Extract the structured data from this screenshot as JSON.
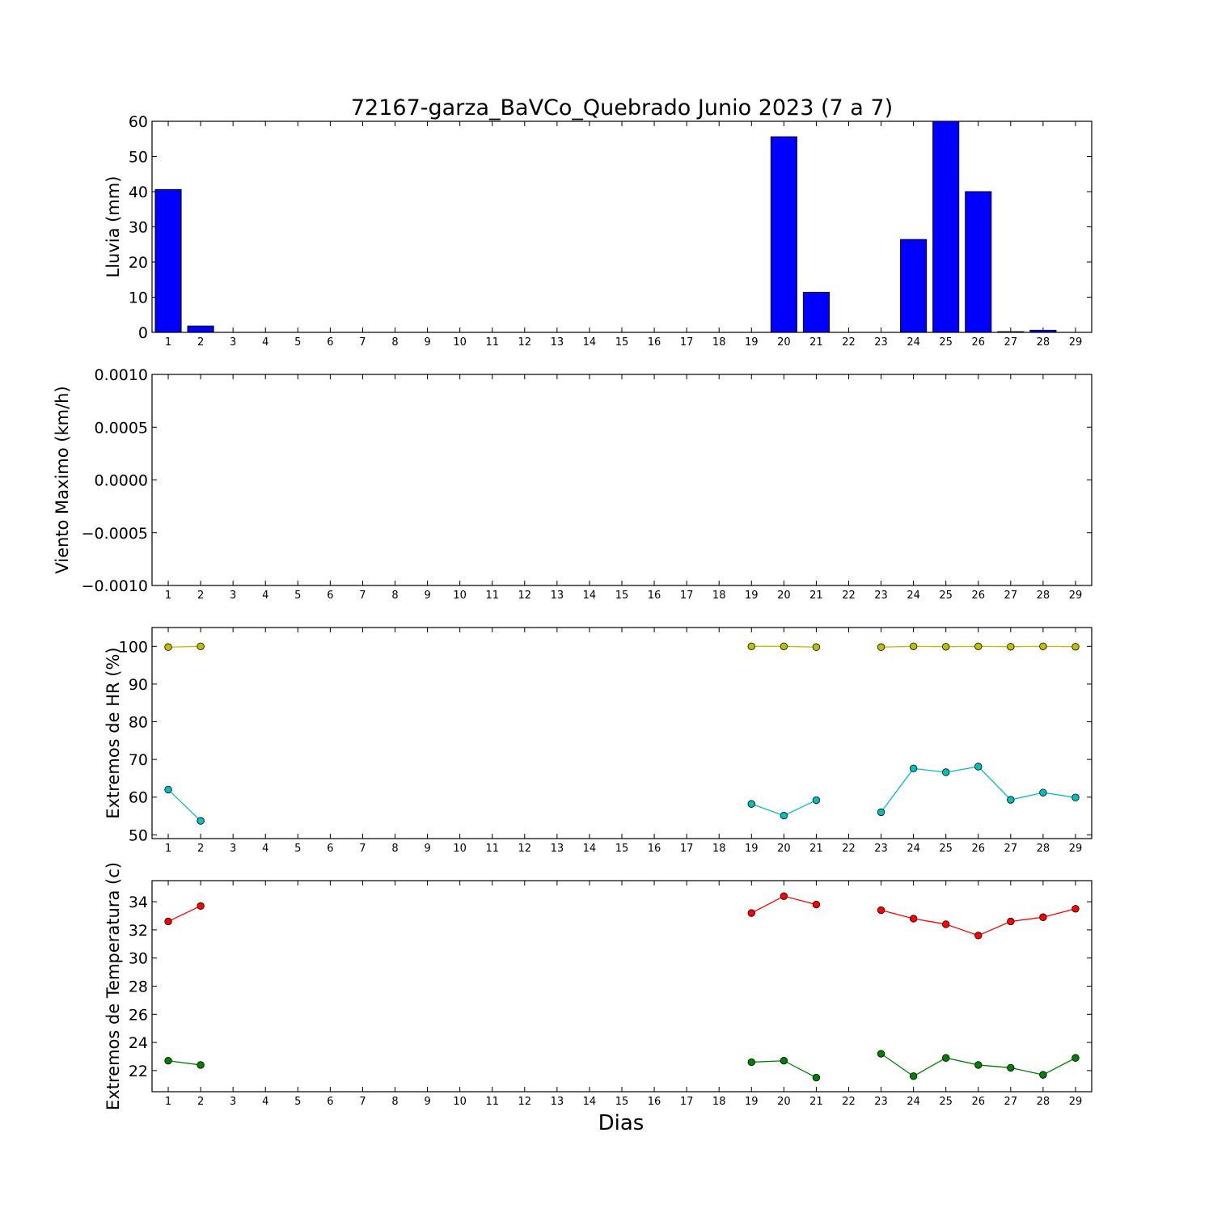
{
  "figure": {
    "title": "72167-garza_BaVCo_Quebrado Junio 2023  (7 a 7)",
    "xlabel": "Dias"
  },
  "colors": {
    "rain": "#0000ff",
    "hr_max": "#bfbf00",
    "hr_min": "#00bfbf",
    "temp_max": "#ff0000",
    "temp_min": "#008000"
  },
  "chart_data": [
    {
      "type": "bar",
      "ylabel": "Lluvia (mm)",
      "ylim": [
        0,
        60
      ],
      "yticks": [
        0,
        10,
        20,
        30,
        40,
        50,
        60
      ],
      "ytick_labels": [
        "0",
        "10",
        "20",
        "30",
        "40",
        "50",
        "60"
      ],
      "x": [
        1,
        2,
        3,
        4,
        5,
        6,
        7,
        8,
        9,
        10,
        11,
        12,
        13,
        14,
        15,
        16,
        17,
        18,
        19,
        20,
        21,
        22,
        23,
        24,
        25,
        26,
        27,
        28,
        29
      ],
      "values": [
        40.6,
        1.8,
        0,
        0,
        0,
        0,
        0,
        0,
        0,
        0,
        0,
        0,
        0,
        0,
        0,
        0,
        0,
        0,
        0,
        55.6,
        11.4,
        0,
        0,
        26.4,
        60,
        40,
        0.2,
        0.6,
        0
      ],
      "series": [
        {
          "color_key": "rain",
          "values": [
            40.6,
            1.8,
            0,
            0,
            0,
            0,
            0,
            0,
            0,
            0,
            0,
            0,
            0,
            0,
            0,
            0,
            0,
            0,
            0,
            55.6,
            11.4,
            0,
            0,
            26.4,
            60,
            40,
            0.2,
            0.6,
            0
          ]
        }
      ]
    },
    {
      "type": "line",
      "ylabel": "Viento Maximo (km/h)",
      "ylim": [
        -0.001,
        0.001
      ],
      "yticks": [
        -0.001,
        -0.0005,
        0,
        0.0005,
        0.001
      ],
      "ytick_labels": [
        "−0.0010",
        "−0.0005",
        "0.0000",
        "0.0005",
        "0.0010"
      ],
      "x": [
        1,
        2,
        3,
        4,
        5,
        6,
        7,
        8,
        9,
        10,
        11,
        12,
        13,
        14,
        15,
        16,
        17,
        18,
        19,
        20,
        21,
        22,
        23,
        24,
        25,
        26,
        27,
        28,
        29
      ],
      "series": []
    },
    {
      "type": "line",
      "ylabel": "Extremos de HR (%)",
      "ylim": [
        49,
        105
      ],
      "yticks": [
        50,
        60,
        70,
        80,
        90,
        100
      ],
      "ytick_labels": [
        "50",
        "60",
        "70",
        "80",
        "90",
        "100"
      ],
      "x": [
        1,
        2,
        3,
        4,
        5,
        6,
        7,
        8,
        9,
        10,
        11,
        12,
        13,
        14,
        15,
        16,
        17,
        18,
        19,
        20,
        21,
        22,
        23,
        24,
        25,
        26,
        27,
        28,
        29
      ],
      "series": [
        {
          "color_key": "hr_max",
          "values": [
            99.8,
            100,
            null,
            null,
            null,
            null,
            null,
            null,
            null,
            null,
            null,
            null,
            null,
            null,
            null,
            null,
            null,
            null,
            100,
            100,
            99.8,
            null,
            99.8,
            100,
            99.9,
            100,
            99.9,
            100,
            99.9
          ]
        },
        {
          "color_key": "hr_min",
          "values": [
            62,
            53.7,
            null,
            null,
            null,
            null,
            null,
            null,
            null,
            null,
            null,
            null,
            null,
            null,
            null,
            null,
            null,
            null,
            58.2,
            55.1,
            59.2,
            null,
            56,
            67.6,
            66.6,
            68.1,
            59.3,
            61.2,
            59.9
          ]
        }
      ]
    },
    {
      "type": "line",
      "ylabel": "Extremos de Temperatura (c)",
      "ylim": [
        20.5,
        35.5
      ],
      "yticks": [
        22,
        24,
        26,
        28,
        30,
        32,
        34
      ],
      "ytick_labels": [
        "22",
        "24",
        "26",
        "28",
        "30",
        "32",
        "34"
      ],
      "x": [
        1,
        2,
        3,
        4,
        5,
        6,
        7,
        8,
        9,
        10,
        11,
        12,
        13,
        14,
        15,
        16,
        17,
        18,
        19,
        20,
        21,
        22,
        23,
        24,
        25,
        26,
        27,
        28,
        29
      ],
      "series": [
        {
          "color_key": "temp_max",
          "values": [
            32.6,
            33.7,
            null,
            null,
            null,
            null,
            null,
            null,
            null,
            null,
            null,
            null,
            null,
            null,
            null,
            null,
            null,
            null,
            33.2,
            34.4,
            33.8,
            null,
            33.4,
            32.8,
            32.4,
            31.6,
            32.6,
            32.9,
            33.5
          ]
        },
        {
          "color_key": "temp_min",
          "values": [
            22.7,
            22.4,
            null,
            null,
            null,
            null,
            null,
            null,
            null,
            null,
            null,
            null,
            null,
            null,
            null,
            null,
            null,
            null,
            22.6,
            22.7,
            21.5,
            null,
            23.2,
            21.6,
            22.9,
            22.4,
            22.2,
            21.7,
            22.9
          ]
        }
      ]
    }
  ]
}
